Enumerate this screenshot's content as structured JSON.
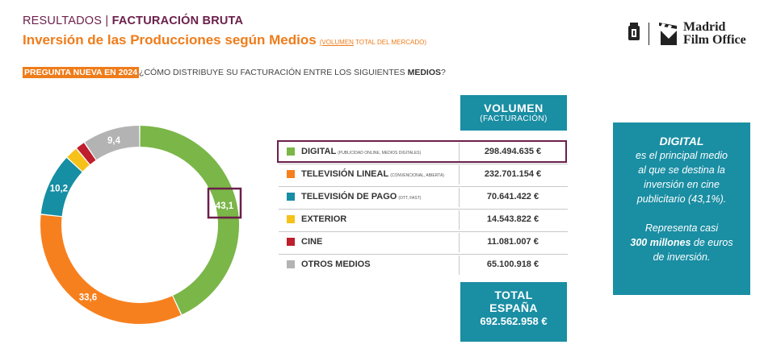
{
  "header": {
    "section": "RESULTADOS |",
    "section_bold": "FACTURACIÓN BRUTA",
    "title": "Inversión de las Producciones según Medios",
    "title_sub_underlined": "(VOLUMEN",
    "title_sub_rest": " TOTAL DEL MERCADO)",
    "question_badge": "PREGUNTA NUEVA EN 2024",
    "question_text": "¿CÓMO DISTRIBUYE SU FACTURACIÓN ENTRE LOS SIGUIENTES ",
    "question_bold": "MEDIOS",
    "question_end": "?"
  },
  "logo": {
    "line1": "Madrid",
    "line2": "Film Office"
  },
  "colors": {
    "teal": "#1a8ea3",
    "orange": "#ef7c1a",
    "purple": "#6b1f4a",
    "digital": "#7ab648",
    "tv_lineal": "#f7801e",
    "tv_pago": "#168ea3",
    "exterior": "#f6c21a",
    "cine": "#be1e2d",
    "otros": "#b3b3b3"
  },
  "chart_data": {
    "type": "pie",
    "donut": true,
    "categories": [
      "DIGITAL",
      "TELEVISIÓN LINEAL",
      "TELEVISIÓN DE PAGO",
      "EXTERIOR",
      "CINE",
      "OTROS MEDIOS"
    ],
    "values": [
      43.1,
      33.6,
      10.2,
      2.1,
      1.6,
      9.4
    ],
    "value_labels": [
      "43,1",
      "33,6",
      "10,2",
      "",
      "",
      "9,4"
    ],
    "slice_colors": [
      "#7ab648",
      "#f7801e",
      "#168ea3",
      "#f6c21a",
      "#be1e2d",
      "#b3b3b3"
    ],
    "highlighted": "DIGITAL"
  },
  "table": {
    "header_main": "VOLUMEN",
    "header_sub": "(FACTURACIÓN)",
    "rows": [
      {
        "name": "DIGITAL",
        "note": "(PUBLICIDAD ONLINE, MEDIOS DIGITALES)",
        "value": "298.494.635 €",
        "color": "#7ab648"
      },
      {
        "name": "TELEVISIÓN LINEAL",
        "note": "(CONVENCIONAL, ABIERTA)",
        "value": "232.701.154 €",
        "color": "#f7801e"
      },
      {
        "name": "TELEVISIÓN DE PAGO",
        "note": "(OTT, FAST)",
        "value": "70.641.422 €",
        "color": "#168ea3"
      },
      {
        "name": "EXTERIOR",
        "note": "",
        "value": "14.543.822 €",
        "color": "#f6c21a"
      },
      {
        "name": "CINE",
        "note": "",
        "value": "11.081.007 €",
        "color": "#be1e2d"
      },
      {
        "name": "OTROS MEDIOS",
        "note": "",
        "value": "65.100.918 €",
        "color": "#b3b3b3"
      }
    ],
    "total_line1": "TOTAL",
    "total_line2": "ESPAÑA",
    "total_value": "692.562.958 €"
  },
  "callout": {
    "heading": "DIGITAL",
    "line1": "es el principal medio",
    "line2": "al que se destina la",
    "line3": "inversión en cine",
    "line4": "publicitario (43,1%).",
    "line5": "Representa casi",
    "line6_bold": "300 millones",
    "line6_rest": " de euros",
    "line7": "de inversión."
  }
}
